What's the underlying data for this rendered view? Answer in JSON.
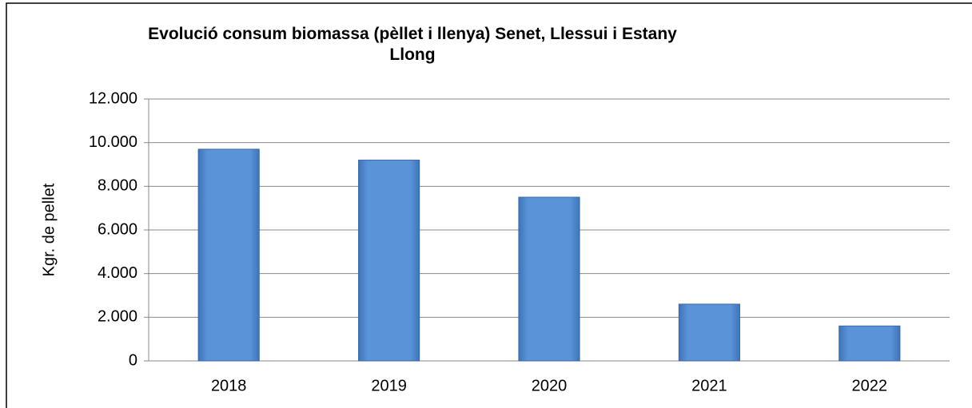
{
  "chart_data": {
    "type": "bar",
    "title": "Evolució consum biomassa (pèllet i llenya) Senet, Llessui i Estany Llong",
    "y_label": "Kgr. de pellet",
    "categories": [
      "2018",
      "2019",
      "2020",
      "2021",
      "2022"
    ],
    "values": [
      9700,
      9200,
      7500,
      2600,
      1600
    ],
    "color": "#5b93d9",
    "ylim": [
      0,
      12000
    ],
    "yticks": [
      0,
      {
        "value": 2000,
        "label": "2.000"
      },
      {
        "value": 4000,
        "label": "4.000"
      },
      {
        "value": 6000,
        "label": "6.000"
      },
      {
        "value": 8000,
        "label": "8.000"
      },
      {
        "value": 10000,
        "label": "10.000"
      },
      {
        "value": 12000,
        "label": "12.000"
      }
    ],
    "grid": true
  }
}
